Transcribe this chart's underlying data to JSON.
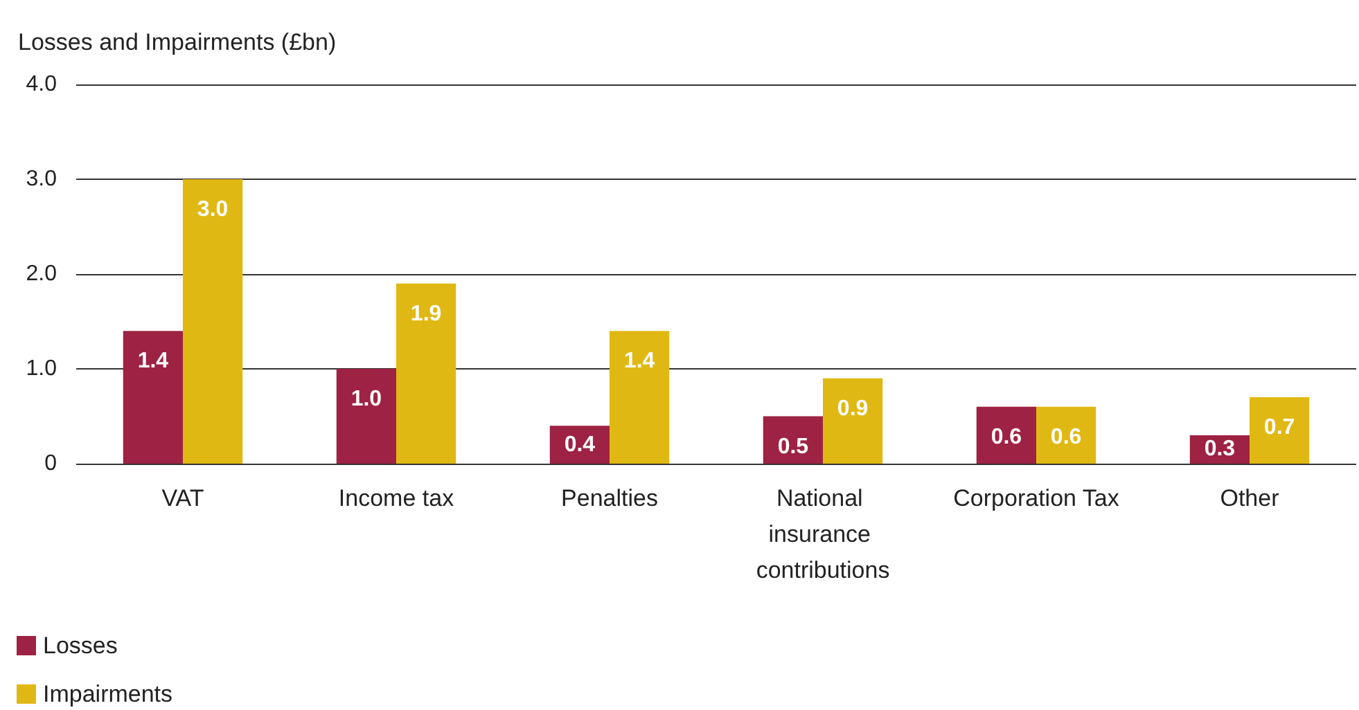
{
  "chart_data": {
    "type": "bar",
    "ylabel": "Losses and Impairments (£bn)",
    "categories": [
      "VAT",
      "Income tax",
      "Penalties",
      "National insurance contributions",
      "Corporation Tax",
      "Other"
    ],
    "series": [
      {
        "name": "Losses",
        "color": "#9e2243",
        "values": [
          1.4,
          1.0,
          0.4,
          0.5,
          0.6,
          0.3
        ],
        "value_labels": [
          "1.4",
          "1.0",
          "0.4",
          "0.5",
          "0.6",
          "0.3"
        ]
      },
      {
        "name": "Impairments",
        "color": "#e0b813",
        "values": [
          3.0,
          1.9,
          1.4,
          0.9,
          0.6,
          0.7
        ],
        "value_labels": [
          "3.0",
          "1.9",
          "1.4",
          "0.9",
          "0.6",
          "0.7"
        ]
      }
    ],
    "ylim": [
      0,
      4
    ],
    "yticks": [
      {
        "value": 0,
        "label": "0"
      },
      {
        "value": 1,
        "label": "1.0"
      },
      {
        "value": 2,
        "label": "2.0"
      },
      {
        "value": 3,
        "label": "3.0"
      },
      {
        "value": 4,
        "label": "4.0"
      }
    ],
    "grid": "y",
    "legend": "bottom left"
  }
}
